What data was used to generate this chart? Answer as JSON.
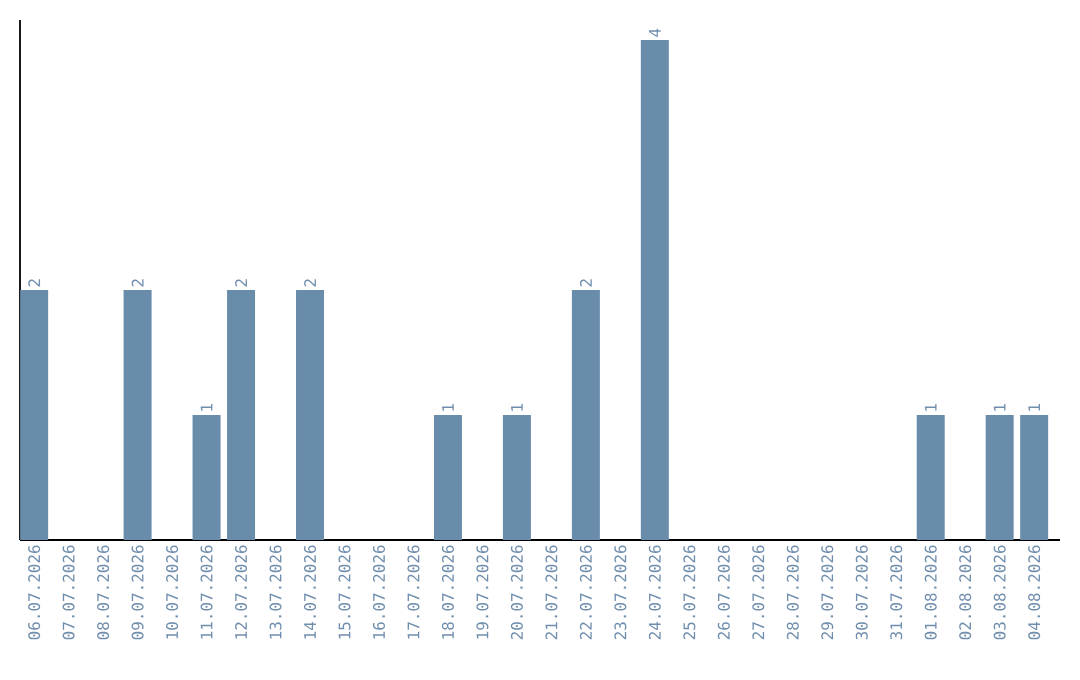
{
  "chart_data": {
    "type": "bar",
    "color": "#6a8cab",
    "categories": [
      "06.07.2026",
      "07.07.2026",
      "08.07.2026",
      "09.07.2026",
      "10.07.2026",
      "11.07.2026",
      "12.07.2026",
      "13.07.2026",
      "14.07.2026",
      "15.07.2026",
      "16.07.2026",
      "17.07.2026",
      "18.07.2026",
      "19.07.2026",
      "20.07.2026",
      "21.07.2026",
      "22.07.2026",
      "23.07.2026",
      "24.07.2026",
      "25.07.2026",
      "26.07.2026",
      "27.07.2026",
      "28.07.2026",
      "29.07.2026",
      "30.07.2026",
      "31.07.2026",
      "01.08.2026",
      "02.08.2026",
      "03.08.2026",
      "04.08.2026"
    ],
    "values": [
      2,
      0,
      0,
      2,
      0,
      1,
      2,
      0,
      2,
      0,
      0,
      0,
      1,
      0,
      1,
      0,
      2,
      0,
      4,
      0,
      0,
      0,
      0,
      0,
      0,
      0,
      1,
      0,
      1,
      1
    ],
    "value_labels": [
      "2",
      null,
      null,
      "2",
      null,
      "1",
      "2",
      null,
      "2",
      null,
      null,
      null,
      "1",
      null,
      "1",
      null,
      "2",
      null,
      "4",
      null,
      null,
      null,
      null,
      null,
      null,
      null,
      "1",
      null,
      "1",
      "1"
    ]
  }
}
